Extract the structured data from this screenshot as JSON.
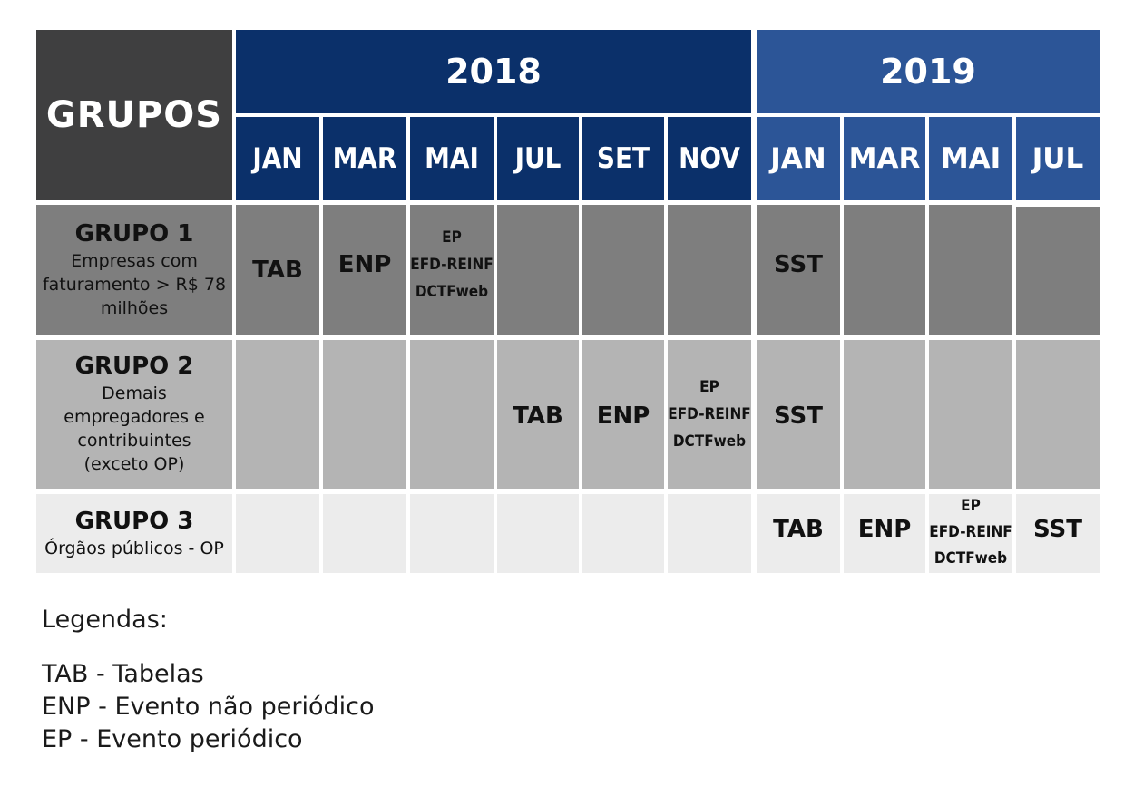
{
  "header": {
    "grupos": "GRUPOS",
    "years": [
      "2018",
      "2019"
    ],
    "months_2018": [
      "JAN",
      "MAR",
      "MAI",
      "JUL",
      "SET",
      "NOV"
    ],
    "months_2019": [
      "JAN",
      "MAR",
      "MAI",
      "JUL"
    ]
  },
  "groups": [
    {
      "name": "GRUPO 1",
      "desc": [
        "Empresas com",
        "faturamento > R$ 78",
        "milhões"
      ],
      "events": {
        "c0": "TAB",
        "c1": "ENP",
        "c2": [
          "EP",
          "EFD-REINF",
          "DCTFweb"
        ],
        "c6": "SST"
      }
    },
    {
      "name": "GRUPO 2",
      "desc": [
        "Demais",
        "empregadores e",
        "contribuintes",
        "(exceto OP)"
      ],
      "events": {
        "c3": "TAB",
        "c4": "ENP",
        "c5": [
          "EP",
          "EFD-REINF",
          "DCTFweb"
        ],
        "c6": "SST"
      }
    },
    {
      "name": "GRUPO 3",
      "desc": [
        "Órgãos públicos - OP"
      ],
      "events": {
        "c6": "TAB",
        "c7": "ENP",
        "c8": [
          "EP",
          "EFD-REINF",
          "DCTFweb"
        ],
        "c9": "SST"
      }
    }
  ],
  "legend": {
    "title": "Legendas:",
    "items": [
      "TAB - Tabelas",
      "ENP - Evento não periódico",
      "EP - Evento periódico"
    ]
  },
  "colors": {
    "grupos_header": "#3f3f40",
    "year_2018": "#0b306a",
    "year_2019": "#2c5597",
    "grupo1": "#7e7e7e",
    "grupo2": "#b4b4b4",
    "grupo3": "#ececec"
  }
}
